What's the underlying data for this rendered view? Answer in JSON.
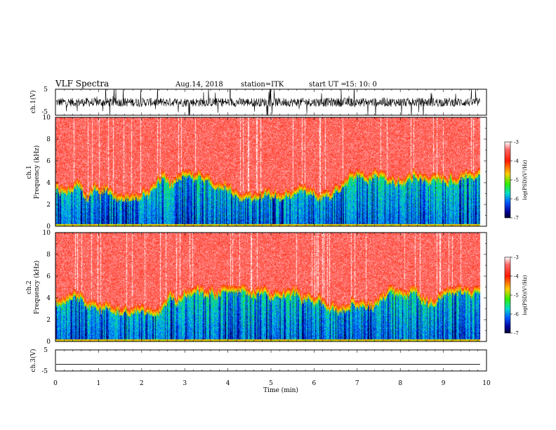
{
  "header": {
    "title": "VLF Spectra",
    "date": "Aug.14, 2018",
    "station": "station=ITK",
    "start_label": "start  UT  =",
    "start_time": "15: 10: 0"
  },
  "chart_data": [
    {
      "type": "line",
      "ylabel": "ch.1(V)",
      "ylim": [
        -5,
        5
      ],
      "yticks": [
        "5",
        "-5"
      ],
      "xlim": [
        0,
        10
      ],
      "series": [
        {
          "style": "noisy waveform with bursts",
          "values_range": [
            -5,
            5
          ]
        }
      ]
    },
    {
      "type": "heatmap",
      "ylabel_line1": "ch.1",
      "ylabel_line2": "Frequency  (kHz)",
      "ylim": [
        0,
        10
      ],
      "yticks": [
        "0",
        "2",
        "4",
        "6",
        "8",
        "10"
      ],
      "xlim": [
        0,
        10
      ],
      "data_end_min": 9.85,
      "colorbar": {
        "label": "log(PSD)(V²/Hz)",
        "range": [
          -7,
          -3
        ],
        "ticks": [
          "-3",
          "-4",
          "-5",
          "-6",
          "-7"
        ]
      }
    },
    {
      "type": "heatmap",
      "ylabel_line1": "ch.2",
      "ylabel_line2": "Frequency  (kHz)",
      "ylim": [
        0,
        10
      ],
      "yticks": [
        "0",
        "2",
        "4",
        "6",
        "8",
        "10"
      ],
      "xlim": [
        0,
        10
      ],
      "data_end_min": 9.85,
      "colorbar": {
        "label": "log(PSD)(V²/Hz)",
        "range": [
          -7,
          -3
        ],
        "ticks": [
          "-3",
          "-4",
          "-5",
          "-6",
          "-7"
        ]
      }
    },
    {
      "type": "line",
      "ylabel": "ch.3(V)",
      "ylim": [
        -5,
        5
      ],
      "yticks": [
        "5",
        "-5"
      ],
      "xlim": [
        0,
        10
      ],
      "series": [
        {
          "style": "flat line",
          "values": [
            -1.8
          ]
        }
      ]
    }
  ],
  "xaxis": {
    "label": "Time  (min)",
    "ticks": [
      "0",
      "1",
      "2",
      "3",
      "4",
      "5",
      "6",
      "7",
      "8",
      "9",
      "10"
    ]
  }
}
